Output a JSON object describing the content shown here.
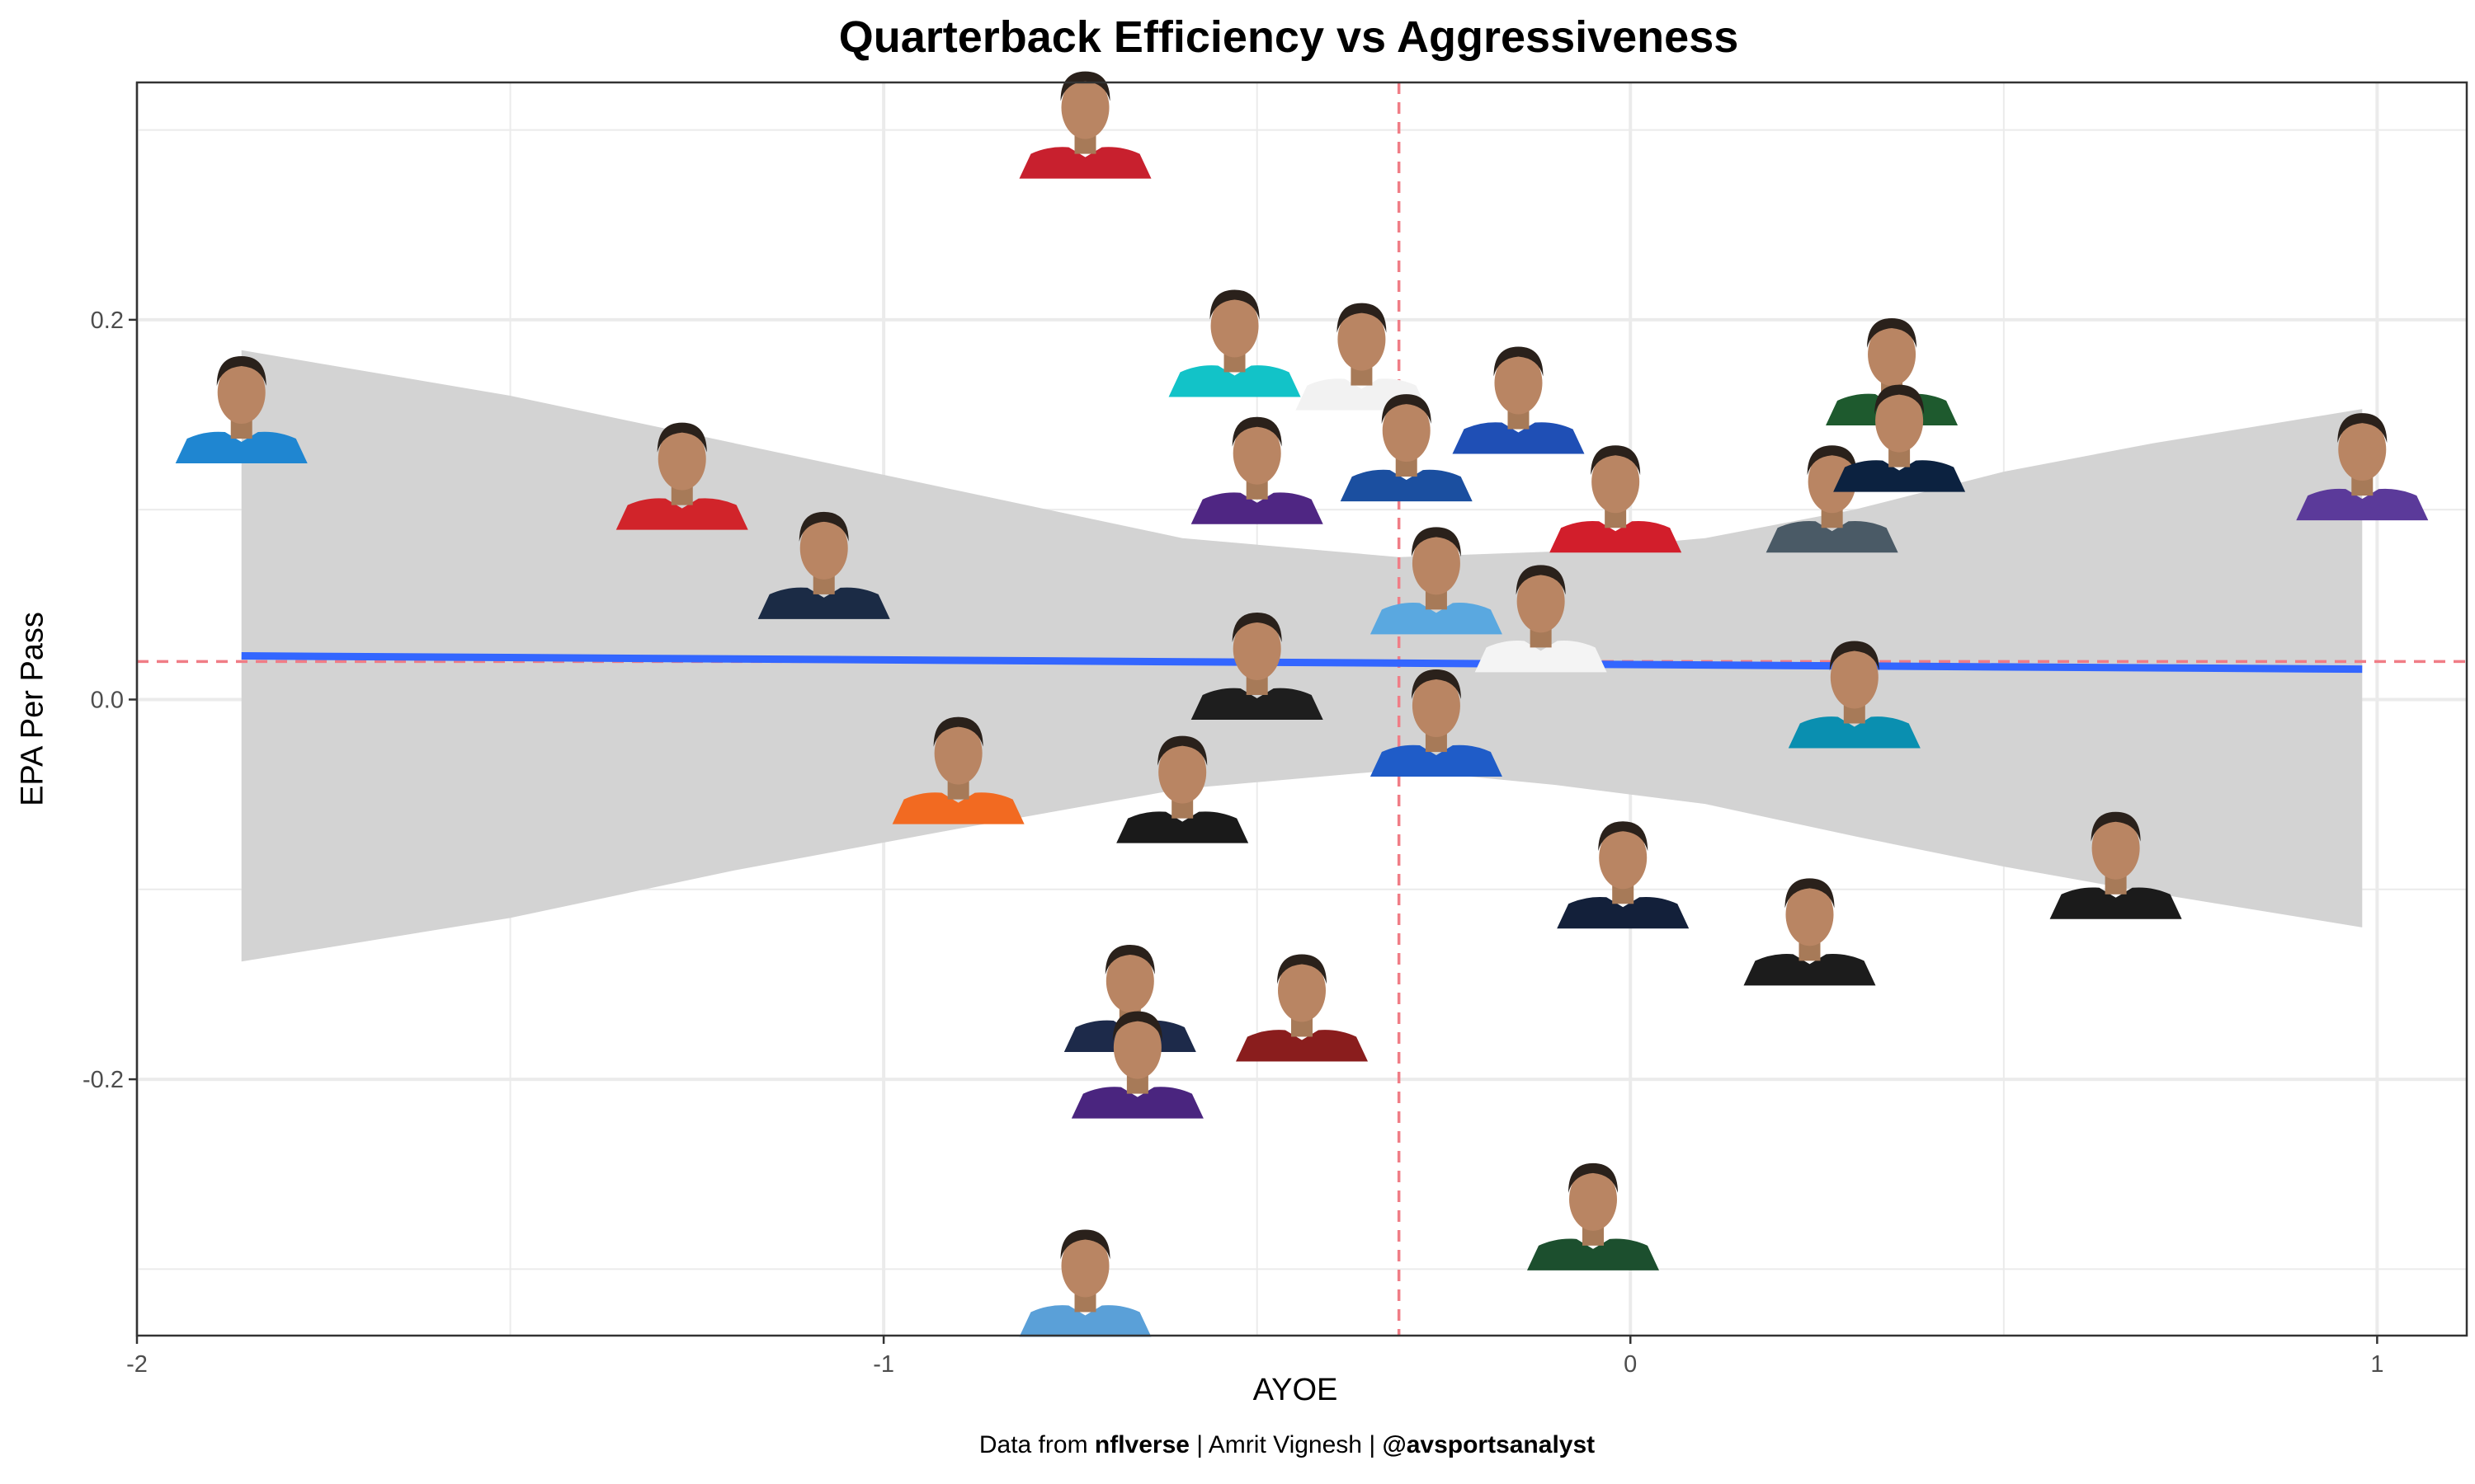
{
  "chart_data": {
    "type": "scatter",
    "title": "Quarterback Efficiency vs Aggressiveness",
    "xlabel": "AYOE",
    "ylabel": "EPA Per Pass",
    "xlim": [
      -2.0,
      1.12
    ],
    "ylim": [
      -0.335,
      0.325
    ],
    "x_ticks": [
      -2,
      -1,
      0,
      1
    ],
    "x_tick_labels": [
      "-2",
      "-1",
      "0",
      "1"
    ],
    "y_ticks": [
      -0.2,
      0.0,
      0.2
    ],
    "y_tick_labels": [
      "-0.2",
      "0.0",
      "0.2"
    ],
    "grid": true,
    "mean_x": -0.31,
    "mean_y": 0.02,
    "trend_line": {
      "x": [
        -1.86,
        0.98
      ],
      "y": [
        0.023,
        0.016
      ]
    },
    "confidence_band": {
      "x": [
        -1.86,
        -1.5,
        -1.2,
        -0.9,
        -0.6,
        -0.31,
        -0.1,
        0.1,
        0.3,
        0.5,
        0.7,
        0.98
      ],
      "upper": [
        0.184,
        0.16,
        0.135,
        0.11,
        0.085,
        0.075,
        0.078,
        0.085,
        0.1,
        0.12,
        0.135,
        0.153
      ],
      "lower": [
        -0.138,
        -0.115,
        -0.09,
        -0.068,
        -0.047,
        -0.037,
        -0.045,
        -0.055,
        -0.072,
        -0.088,
        -0.102,
        -0.12
      ]
    },
    "points": [
      {
        "x": -1.86,
        "y": 0.14,
        "jersey": "#1f86d1"
      },
      {
        "x": -1.27,
        "y": 0.105,
        "jersey": "#d1242a"
      },
      {
        "x": -1.08,
        "y": 0.058,
        "jersey": "#1b2b45"
      },
      {
        "x": -0.73,
        "y": 0.29,
        "jersey": "#c8202e"
      },
      {
        "x": -0.9,
        "y": -0.05,
        "jersey": "#f26a21"
      },
      {
        "x": -0.53,
        "y": 0.175,
        "jersey": "#12c3c8"
      },
      {
        "x": -0.5,
        "y": 0.108,
        "jersey": "#4f2683"
      },
      {
        "x": -0.36,
        "y": 0.168,
        "jersey": "#f2f2f2"
      },
      {
        "x": -0.3,
        "y": 0.12,
        "jersey": "#1b4fa0"
      },
      {
        "x": -0.15,
        "y": 0.145,
        "jersey": "#1f4fb5"
      },
      {
        "x": -0.02,
        "y": 0.093,
        "jersey": "#d21e2b"
      },
      {
        "x": 0.27,
        "y": 0.093,
        "jersey": "#4a5a66"
      },
      {
        "x": 0.35,
        "y": 0.16,
        "jersey": "#1e5a2e"
      },
      {
        "x": 0.36,
        "y": 0.125,
        "jersey": "#0c2240"
      },
      {
        "x": 0.98,
        "y": 0.11,
        "jersey": "#5b3a9a"
      },
      {
        "x": -0.26,
        "y": 0.05,
        "jersey": "#5aa8e0"
      },
      {
        "x": -0.12,
        "y": 0.03,
        "jersey": "#f4f4f4"
      },
      {
        "x": -0.5,
        "y": 0.005,
        "jersey": "#1e1e1e"
      },
      {
        "x": -0.26,
        "y": -0.025,
        "jersey": "#1f5cc8"
      },
      {
        "x": 0.3,
        "y": -0.01,
        "jersey": "#0a8fb0"
      },
      {
        "x": -0.6,
        "y": -0.06,
        "jersey": "#1a1a1a"
      },
      {
        "x": 0.65,
        "y": -0.1,
        "jersey": "#1b1b1b"
      },
      {
        "x": -0.01,
        "y": -0.105,
        "jersey": "#13203a"
      },
      {
        "x": 0.24,
        "y": -0.135,
        "jersey": "#1c1c1c"
      },
      {
        "x": -0.67,
        "y": -0.17,
        "jersey": "#1d2a4a"
      },
      {
        "x": -0.44,
        "y": -0.175,
        "jersey": "#8a1d1d"
      },
      {
        "x": -0.66,
        "y": -0.205,
        "jersey": "#4a257f"
      },
      {
        "x": -0.05,
        "y": -0.285,
        "jersey": "#1c4f2e"
      },
      {
        "x": -0.73,
        "y": -0.32,
        "jersey": "#5aa0d8"
      }
    ]
  },
  "caption": {
    "prefix": "Data from ",
    "source": "nflverse",
    "middle": " | Amrit Vignesh | ",
    "handle": "@avsportsanalyst"
  },
  "colors": {
    "trend": "#3366ff",
    "band": "#d3d3d3",
    "mean_line": "#f07d86",
    "grid": "#ebebeb",
    "panel_border": "#333333"
  }
}
